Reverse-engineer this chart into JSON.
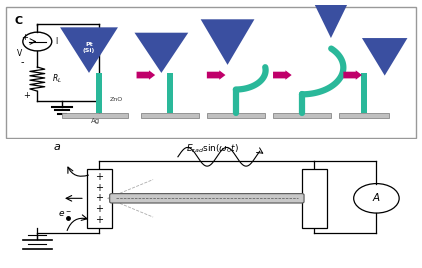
{
  "bg_color": "#ffffff",
  "panel_c_label": "C",
  "panel_a_label": "a",
  "tip_color": "#3a4fa0",
  "nanowire_color": "#2ab89a",
  "arrow_color": "#c0006a",
  "substrate_color": "#c0c0c0",
  "label_pt_si": "Pt\n(Si)",
  "label_zno": "ZnO",
  "label_ag": "Ag",
  "label_i": "I",
  "label_v": "V",
  "label_rl": "$R_L$",
  "label_e_formula": "$E_{rad}\\sin(\\omega_0 t)$",
  "label_e_minus": "$e^-$"
}
